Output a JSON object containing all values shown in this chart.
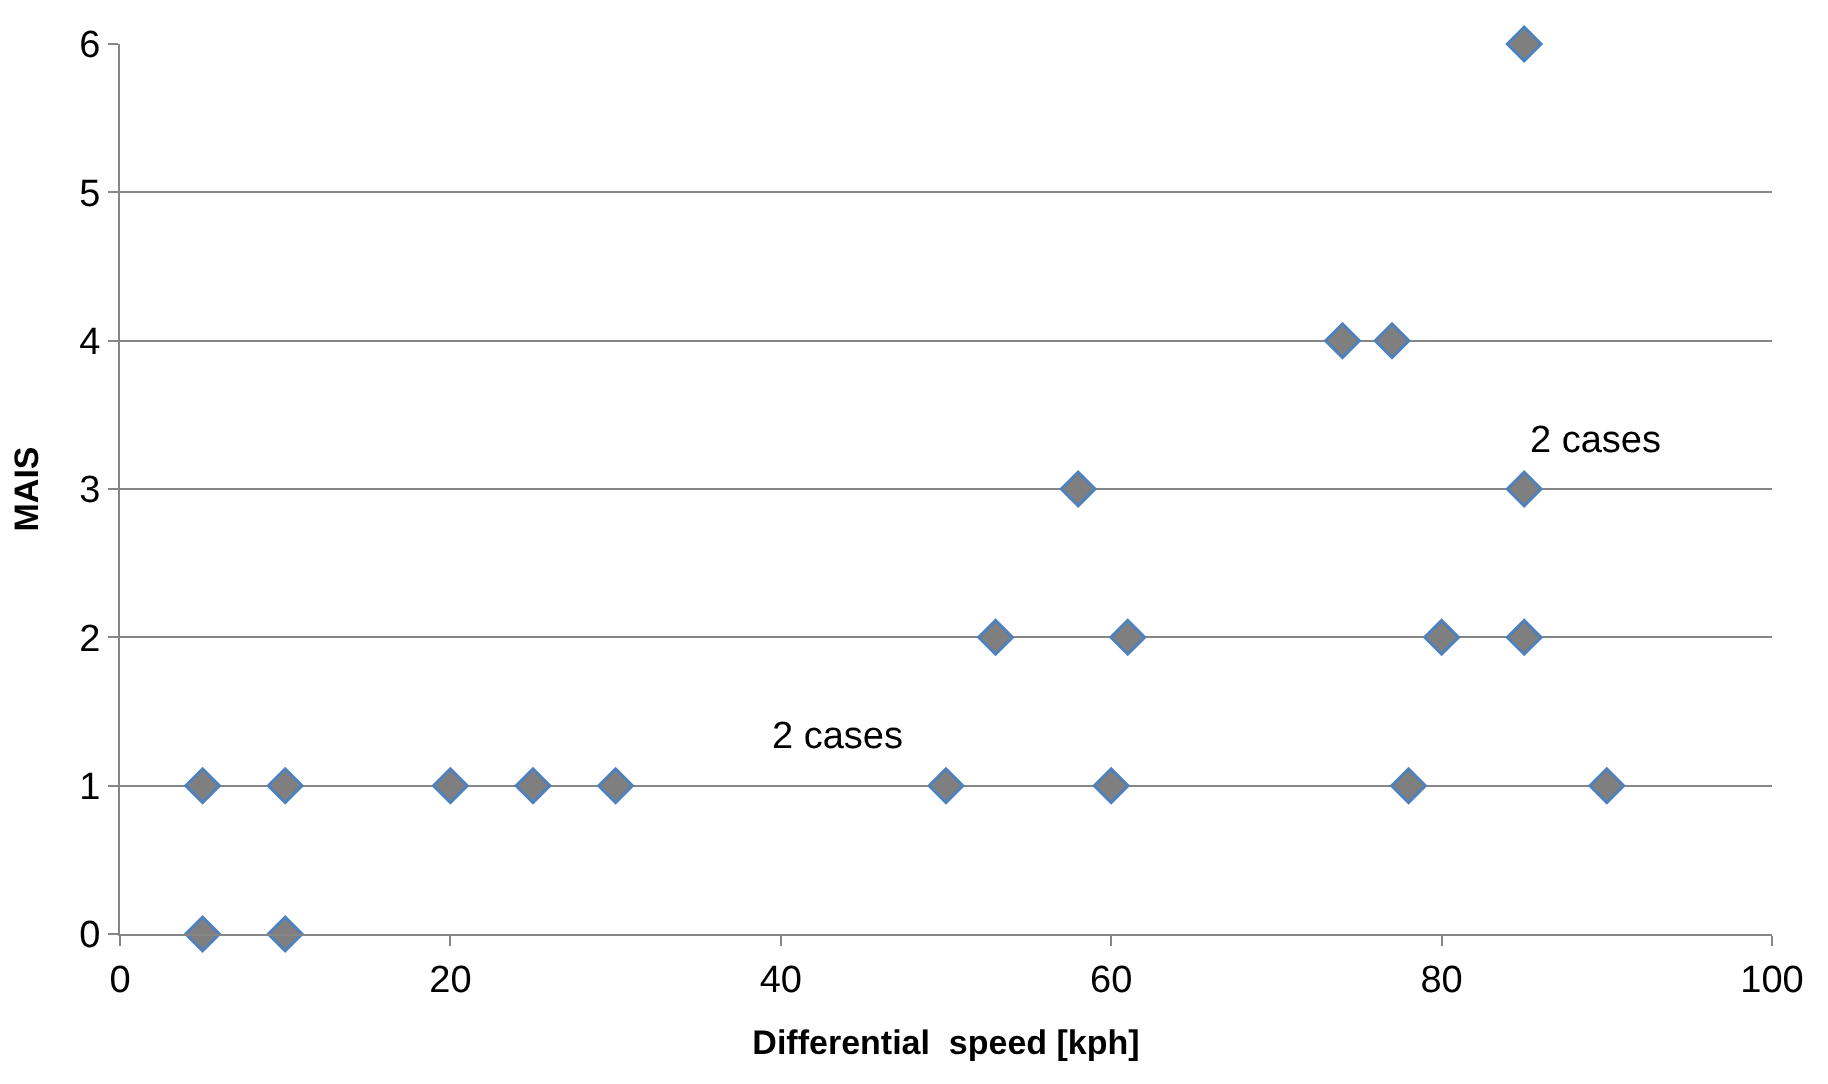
{
  "chart_data": {
    "type": "scatter",
    "xlabel": "Differential  speed [kph]",
    "ylabel": "MAIS",
    "series": [
      {
        "color": "#7f7f7f",
        "x": [
          5,
          10,
          5,
          10,
          20,
          25,
          30,
          50,
          60,
          78,
          90,
          53,
          61,
          80,
          85,
          58,
          85,
          74,
          77,
          85
        ],
        "values": [
          0,
          0,
          1,
          1,
          1,
          1,
          1,
          1,
          1,
          1,
          1,
          2,
          2,
          2,
          2,
          3,
          3,
          4,
          4,
          6
        ]
      }
    ],
    "annotations": [
      {
        "text": "2 cases",
        "x": 50,
        "y": 1
      },
      {
        "text": "2 cases",
        "x": 85,
        "y": 3
      }
    ],
    "xlim": [
      0,
      100
    ],
    "xticks": [
      0,
      20,
      40,
      60,
      80,
      100
    ],
    "ylim": [
      0,
      6
    ],
    "yticks": [
      0,
      1,
      2,
      3,
      4,
      5,
      6
    ],
    "grid": "y",
    "marker": "diamond",
    "legend": false
  }
}
